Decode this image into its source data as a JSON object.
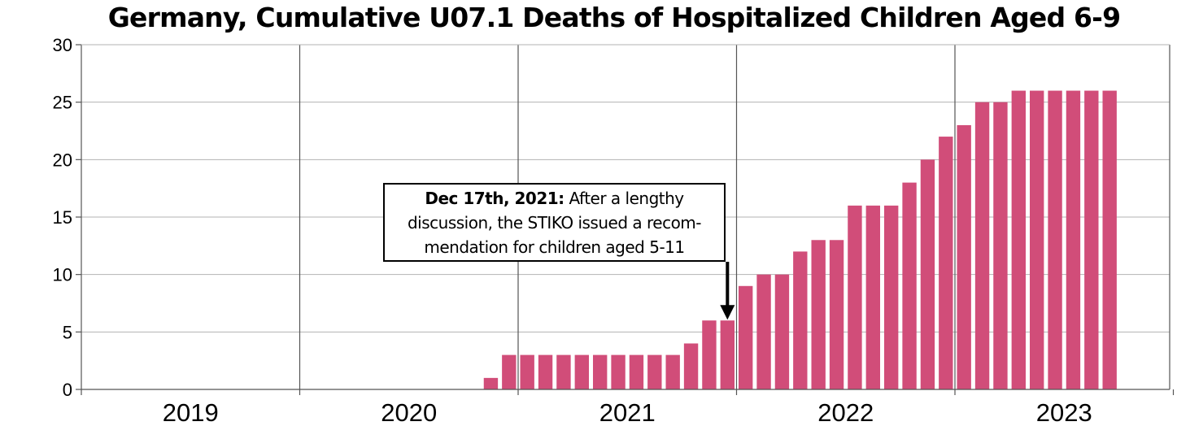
{
  "chart_data": {
    "type": "bar",
    "title": "Germany, Cumulative U07.1 Deaths of Hospitalized Children Aged 6-9",
    "xlabel": "",
    "ylabel": "",
    "ylim": [
      0,
      30
    ],
    "yticks": [
      0,
      5,
      10,
      15,
      20,
      25,
      30
    ],
    "year_labels": [
      "2019",
      "2020",
      "2021",
      "2022",
      "2023"
    ],
    "grid": true,
    "bar_color": "#d14d79",
    "categories": [
      "2019-01",
      "2019-02",
      "2019-03",
      "2019-04",
      "2019-05",
      "2019-06",
      "2019-07",
      "2019-08",
      "2019-09",
      "2019-10",
      "2019-11",
      "2019-12",
      "2020-01",
      "2020-02",
      "2020-03",
      "2020-04",
      "2020-05",
      "2020-06",
      "2020-07",
      "2020-08",
      "2020-09",
      "2020-10",
      "2020-11",
      "2020-12",
      "2021-01",
      "2021-02",
      "2021-03",
      "2021-04",
      "2021-05",
      "2021-06",
      "2021-07",
      "2021-08",
      "2021-09",
      "2021-10",
      "2021-11",
      "2021-12",
      "2022-01",
      "2022-02",
      "2022-03",
      "2022-04",
      "2022-05",
      "2022-06",
      "2022-07",
      "2022-08",
      "2022-09",
      "2022-10",
      "2022-11",
      "2022-12",
      "2023-01",
      "2023-02",
      "2023-03",
      "2023-04",
      "2023-05",
      "2023-06",
      "2023-07",
      "2023-08",
      "2023-09",
      "2023-10",
      "2023-11",
      "2023-12"
    ],
    "values": [
      0,
      0,
      0,
      0,
      0,
      0,
      0,
      0,
      0,
      0,
      0,
      0,
      0,
      0,
      0,
      0,
      0,
      0,
      0,
      0,
      0,
      0,
      1,
      3,
      3,
      3,
      3,
      3,
      3,
      3,
      3,
      3,
      3,
      4,
      6,
      6,
      9,
      10,
      10,
      12,
      13,
      13,
      16,
      16,
      16,
      18,
      20,
      22,
      23,
      25,
      25,
      26,
      26,
      26,
      26,
      26,
      26,
      null,
      null,
      null
    ],
    "annotation": {
      "bold": "Dec 17th, 2021:",
      "text": "After a lengthy discussion, the STIKO issued a recom-mendation for children aged 5-11",
      "points_to": "2021-12"
    }
  }
}
